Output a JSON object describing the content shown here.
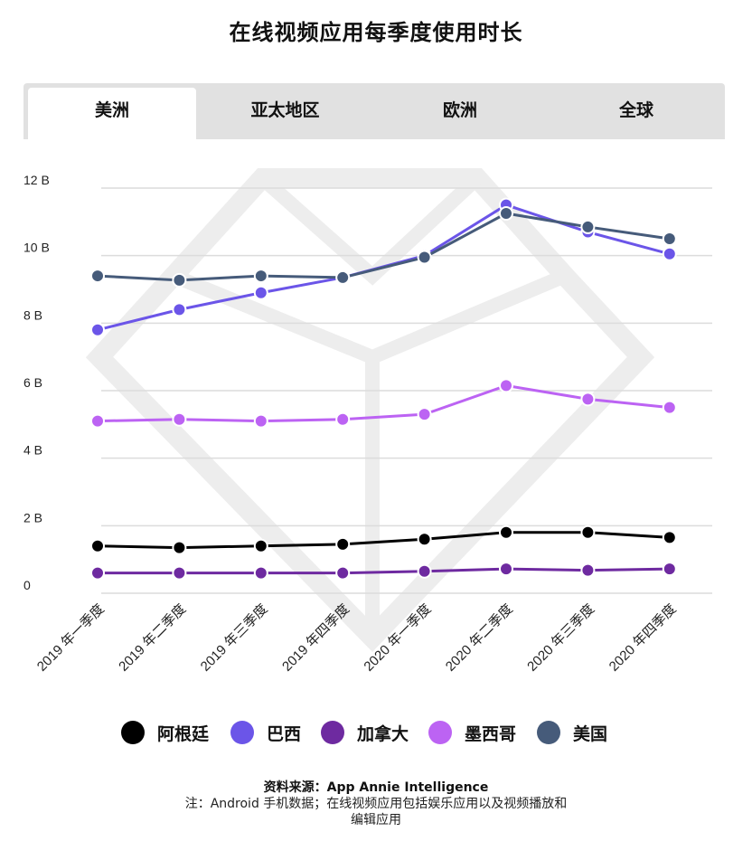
{
  "title": "在线视频应用每季度使用时长",
  "tabs": [
    {
      "label": "美洲",
      "active": true
    },
    {
      "label": "亚太地区",
      "active": false
    },
    {
      "label": "欧洲",
      "active": false
    },
    {
      "label": "全球",
      "active": false
    }
  ],
  "chart_data": {
    "type": "line",
    "categories": [
      "2019 年一季度",
      "2019 年二季度",
      "2019 年三季度",
      "2019 年四季度",
      "2020 年一季度",
      "2020 年二季度",
      "2020 年三季度",
      "2020 年四季度"
    ],
    "yticks": [
      {
        "value": 0,
        "label": "0"
      },
      {
        "value": 2,
        "label": "2 B"
      },
      {
        "value": 4,
        "label": "4 B"
      },
      {
        "value": 6,
        "label": "6 B"
      },
      {
        "value": 8,
        "label": "8 B"
      },
      {
        "value": 10,
        "label": "10 B"
      },
      {
        "value": 12,
        "label": "12 B"
      }
    ],
    "ylim": [
      0,
      12
    ],
    "grid": true,
    "legend_position": "bottom",
    "series": [
      {
        "name": "阿根廷",
        "color": "#000000",
        "values": [
          1.4,
          1.35,
          1.4,
          1.45,
          1.6,
          1.8,
          1.8,
          1.65
        ]
      },
      {
        "name": "巴西",
        "color": "#6b55e8",
        "values": [
          7.8,
          8.4,
          8.9,
          9.35,
          10.0,
          11.5,
          10.7,
          10.05
        ]
      },
      {
        "name": "加拿大",
        "color": "#6e2aa0",
        "values": [
          0.6,
          0.6,
          0.6,
          0.6,
          0.65,
          0.72,
          0.68,
          0.72
        ]
      },
      {
        "name": "墨西哥",
        "color": "#bc63f3",
        "values": [
          5.1,
          5.15,
          5.1,
          5.15,
          5.3,
          6.15,
          5.75,
          5.5
        ]
      },
      {
        "name": "美国",
        "color": "#465b7a",
        "values": [
          9.4,
          9.27,
          9.4,
          9.35,
          9.95,
          11.25,
          10.85,
          10.5
        ]
      }
    ]
  },
  "source": "资料来源：App Annie Intelligence",
  "note": "注：Android 手机数据；在线视频应用包括娱乐应用以及视频播放和编辑应用"
}
